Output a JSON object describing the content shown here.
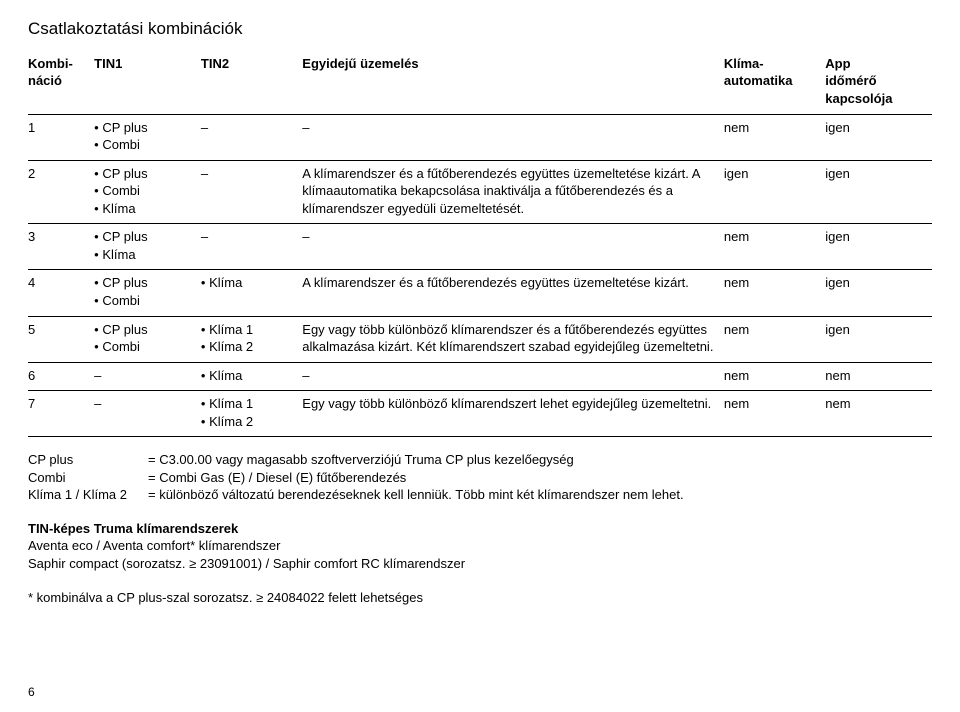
{
  "title": "Csatlakoztatási kombinációk",
  "headers": {
    "c0": "Kombi-\nnáció",
    "c1": "TIN1",
    "c2": "TIN2",
    "c3": "Egyidejű üzemelés",
    "c4": "Klíma-\nautomatika",
    "c5": "App\nidőmérő\nkapcsolója"
  },
  "rows": [
    {
      "num": "1",
      "tin1": [
        "CP plus",
        "Combi"
      ],
      "tin2": "–",
      "op": "–",
      "auto": "nem",
      "app": "igen"
    },
    {
      "num": "2",
      "tin1": [
        "CP plus",
        "Combi",
        "Klíma"
      ],
      "tin2": "–",
      "op": "A klímarendszer és a fűtőberendezés együttes üzemeltetése kizárt. A klímaautomatika bekapcsolása inaktiválja a fűtőberendezés és a klímarendszer egyedüli üzemeltetését.",
      "auto": "igen",
      "app": "igen"
    },
    {
      "num": "3",
      "tin1": [
        "CP plus",
        "Klíma"
      ],
      "tin2": "–",
      "op": "–",
      "auto": "nem",
      "app": "igen"
    },
    {
      "num": "4",
      "tin1": [
        "CP plus",
        "Combi"
      ],
      "tin2": [
        "Klíma"
      ],
      "op": "A klímarendszer és a fűtőberendezés együttes üzemeltetése kizárt.",
      "auto": "nem",
      "app": "igen"
    },
    {
      "num": "5",
      "tin1": [
        "CP plus",
        "Combi"
      ],
      "tin2": [
        "Klíma 1",
        "Klíma 2"
      ],
      "op": "Egy vagy több különböző klímarendszer és a fűtőberendezés együttes alkalmazása kizárt. Két klímarendszert szabad egyidejűleg üzemeltetni.",
      "auto": "nem",
      "app": "igen"
    },
    {
      "num": "6",
      "tin1": "–",
      "tin2": [
        "Klíma"
      ],
      "op": "–",
      "auto": "nem",
      "app": "nem"
    },
    {
      "num": "7",
      "tin1": "–",
      "tin2": [
        "Klíma 1",
        "Klíma 2"
      ],
      "op": "Egy vagy több különböző klímarendszert lehet egyidejűleg üzemeltetni.",
      "auto": "nem",
      "app": "nem"
    }
  ],
  "legend": [
    {
      "key": "CP plus",
      "val": "= C3.00.00 vagy magasabb szoftververziójú Truma CP plus kezelőegység"
    },
    {
      "key": "Combi",
      "val": "= Combi Gas (E) / Diesel (E) fűtőberendezés"
    },
    {
      "key": "Klíma 1 / Klíma 2",
      "val": "= különböző változatú berendezéseknek kell lenniük. Több mint két klímarendszer nem lehet."
    }
  ],
  "section2": {
    "heading": "TIN-képes Truma klímarendszerek",
    "line1": "Aventa eco / Aventa comfort* klímarendszer",
    "line2": "Saphir compact (sorozatsz. ≥ 23091001) / Saphir comfort RC klímarendszer",
    "note": "* kombinálva a CP plus-szal sorozatsz. ≥ 24084022 felett lehetséges"
  },
  "pagenum": "6"
}
